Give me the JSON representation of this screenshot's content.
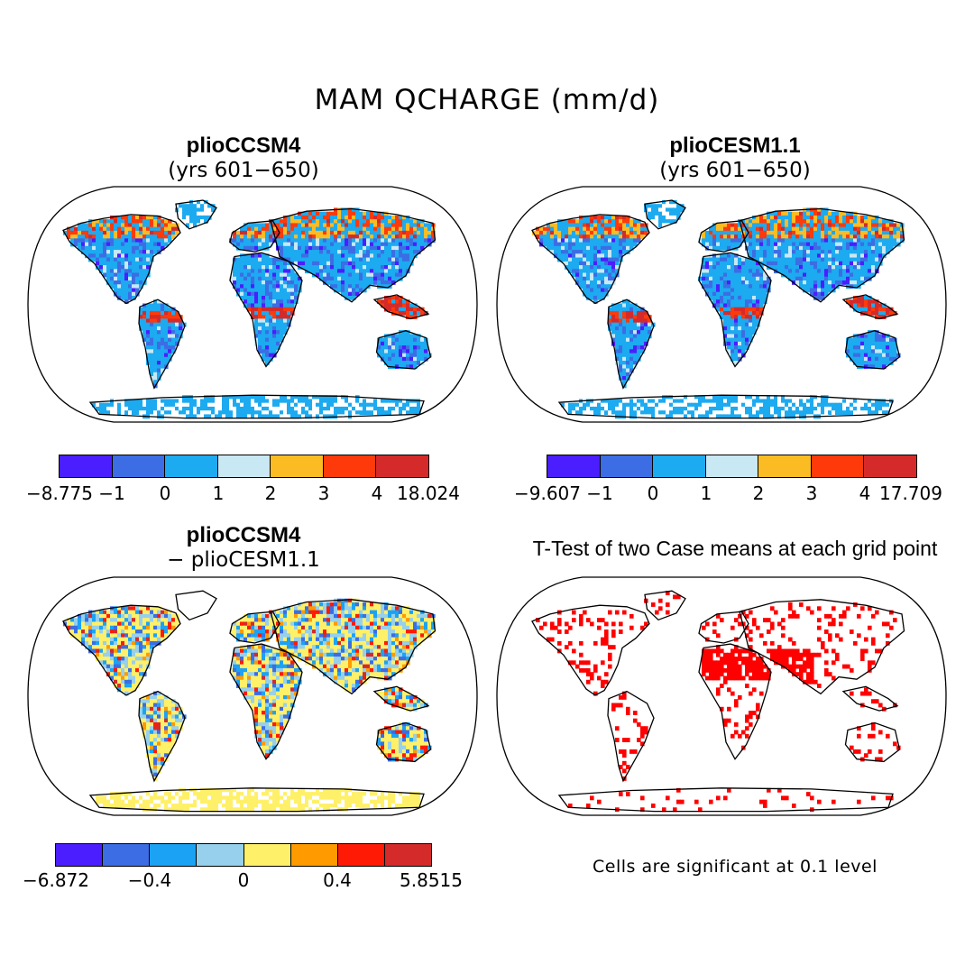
{
  "title": "MAM QCHARGE (mm/d)",
  "panels": [
    {
      "title": "plioCCSM4",
      "subtitle": "(yrs 601−650)",
      "colorbar": {
        "colors": [
          "#4a1eff",
          "#3c6de4",
          "#1caaf0",
          "#c8e8f4",
          "#fbbc23",
          "#ff3a0a",
          "#d42a2a"
        ],
        "tick_labels": [
          "−8.775",
          "−1",
          "0",
          "1",
          "2",
          "3",
          "4",
          "18.024"
        ]
      }
    },
    {
      "title": "plioCESM1.1",
      "subtitle": "(yrs 601−650)",
      "colorbar": {
        "colors": [
          "#4a1eff",
          "#3c6de4",
          "#1caaf0",
          "#c8e8f4",
          "#fbbc23",
          "#ff3a0a",
          "#d42a2a"
        ],
        "tick_labels": [
          "−9.607",
          "−1",
          "0",
          "1",
          "2",
          "3",
          "4",
          "17.709"
        ]
      }
    },
    {
      "title": "plioCCSM4",
      "subtitle": "− plioCESM1.1",
      "colorbar": {
        "colors": [
          "#4a1eff",
          "#3c6de4",
          "#1ca2f4",
          "#96d0ec",
          "#fff06a",
          "#ff9a00",
          "#ff1a06",
          "#d42a2a"
        ],
        "tick_labels": [
          "−6.872",
          "−0.4",
          "0",
          "0.4",
          "5.8515"
        ]
      }
    },
    {
      "title": "T-Test of two Case means at each grid point",
      "note": "Cells are significant at 0.1 level",
      "significance_color": "#ff0000"
    }
  ]
}
